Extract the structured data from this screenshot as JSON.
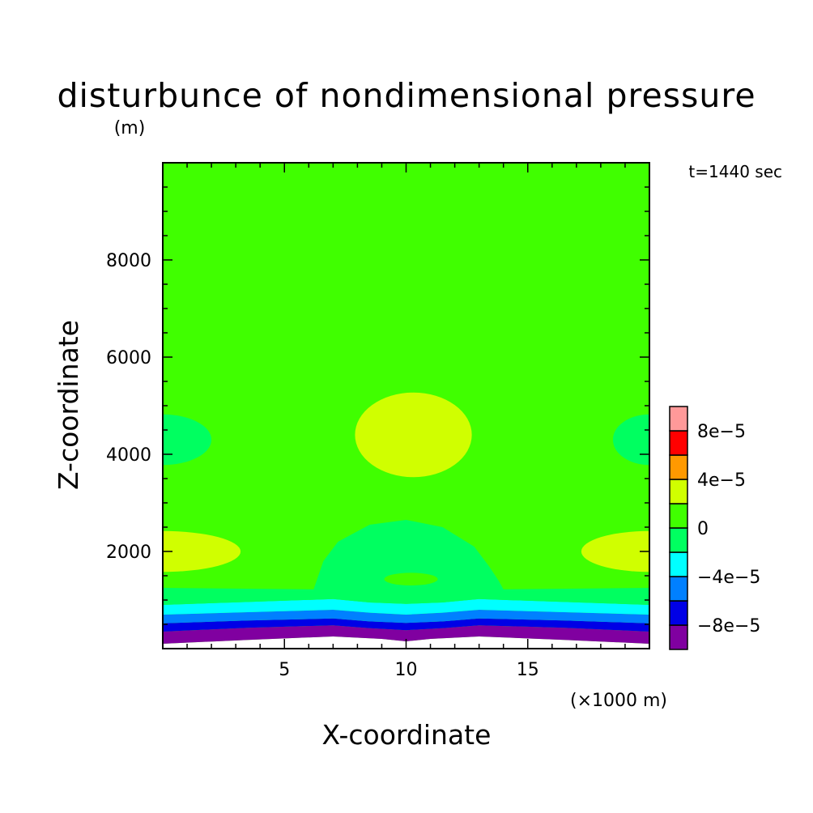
{
  "chart_data": {
    "type": "heatmap",
    "title": "disturbunce of nondimensional pressure",
    "time_label": "t=1440 sec",
    "xlabel": "X-coordinate",
    "xunit": "(×1000 m)",
    "ylabel": "Z-coordinate",
    "yunit": "(m)",
    "xlim": [
      0,
      20
    ],
    "ylim": [
      0,
      10000
    ],
    "x_ticks": [
      5,
      10,
      15
    ],
    "x_tick_labels": [
      "5",
      "10",
      "15"
    ],
    "y_ticks": [
      2000,
      4000,
      6000,
      8000
    ],
    "y_tick_labels": [
      "2000",
      "4000",
      "6000",
      "8000"
    ],
    "background_level_color": "#40ff00",
    "regions": [
      {
        "name": "band-ground",
        "shape": "band",
        "color": "#ffffff",
        "points": [
          [
            0,
            0
          ],
          [
            0,
            100
          ],
          [
            3.5,
            180
          ],
          [
            7,
            250
          ],
          [
            9,
            200
          ],
          [
            10,
            150
          ],
          [
            11,
            200
          ],
          [
            13,
            250
          ],
          [
            16.5,
            180
          ],
          [
            20,
            100
          ],
          [
            20,
            0
          ]
        ]
      },
      {
        "name": "band-minus-10e-5",
        "shape": "band",
        "color": "#8000a0",
        "points": [
          [
            0,
            100
          ],
          [
            3.5,
            180
          ],
          [
            7,
            250
          ],
          [
            9,
            200
          ],
          [
            10,
            150
          ],
          [
            11,
            200
          ],
          [
            13,
            250
          ],
          [
            16.5,
            180
          ],
          [
            20,
            100
          ],
          [
            20,
            350
          ],
          [
            16.5,
            430
          ],
          [
            13,
            480
          ],
          [
            11.5,
            420
          ],
          [
            10,
            380
          ],
          [
            8.5,
            420
          ],
          [
            7,
            480
          ],
          [
            3.5,
            430
          ],
          [
            0,
            350
          ]
        ]
      },
      {
        "name": "band-minus-8e-5",
        "shape": "band",
        "color": "#0000e6",
        "points": [
          [
            0,
            350
          ],
          [
            3.5,
            430
          ],
          [
            7,
            480
          ],
          [
            8.5,
            420
          ],
          [
            10,
            380
          ],
          [
            11.5,
            420
          ],
          [
            13,
            480
          ],
          [
            16.5,
            430
          ],
          [
            20,
            350
          ],
          [
            20,
            520
          ],
          [
            16.5,
            580
          ],
          [
            13,
            620
          ],
          [
            11.5,
            560
          ],
          [
            10,
            530
          ],
          [
            8.5,
            560
          ],
          [
            7,
            620
          ],
          [
            3.5,
            580
          ],
          [
            0,
            520
          ]
        ]
      },
      {
        "name": "band-minus-6e-5",
        "shape": "band",
        "color": "#0080ff",
        "points": [
          [
            0,
            520
          ],
          [
            3.5,
            580
          ],
          [
            7,
            620
          ],
          [
            8.5,
            560
          ],
          [
            10,
            530
          ],
          [
            11.5,
            560
          ],
          [
            13,
            620
          ],
          [
            16.5,
            580
          ],
          [
            20,
            520
          ],
          [
            20,
            700
          ],
          [
            16.5,
            750
          ],
          [
            13,
            800
          ],
          [
            11.5,
            740
          ],
          [
            10,
            700
          ],
          [
            8.5,
            740
          ],
          [
            7,
            800
          ],
          [
            3.5,
            750
          ],
          [
            0,
            700
          ]
        ]
      },
      {
        "name": "band-minus-4e-5",
        "shape": "band",
        "color": "#00ffff",
        "points": [
          [
            0,
            700
          ],
          [
            3.5,
            750
          ],
          [
            7,
            800
          ],
          [
            8.5,
            740
          ],
          [
            10,
            700
          ],
          [
            11.5,
            740
          ],
          [
            13,
            800
          ],
          [
            16.5,
            750
          ],
          [
            20,
            700
          ],
          [
            20,
            900
          ],
          [
            16.5,
            960
          ],
          [
            13,
            1020
          ],
          [
            11.5,
            950
          ],
          [
            10,
            920
          ],
          [
            8.5,
            950
          ],
          [
            7,
            1020
          ],
          [
            3.5,
            960
          ],
          [
            0,
            900
          ]
        ]
      },
      {
        "name": "band-minus-2e-5",
        "shape": "band",
        "color": "#00ff60",
        "points": [
          [
            0,
            900
          ],
          [
            3.5,
            960
          ],
          [
            7,
            1020
          ],
          [
            8.5,
            950
          ],
          [
            10,
            920
          ],
          [
            11.5,
            950
          ],
          [
            13,
            1020
          ],
          [
            16.5,
            960
          ],
          [
            20,
            900
          ],
          [
            20,
            1250
          ],
          [
            14,
            1220
          ],
          [
            13.8,
            1400
          ],
          [
            13.4,
            1700
          ],
          [
            12.8,
            2100
          ],
          [
            11.5,
            2500
          ],
          [
            10,
            2650
          ],
          [
            8.5,
            2550
          ],
          [
            7.2,
            2200
          ],
          [
            6.6,
            1800
          ],
          [
            6.2,
            1220
          ],
          [
            0,
            1250
          ]
        ]
      },
      {
        "name": "blob-center-low",
        "shape": "ellipse",
        "color": "#40ff00",
        "cx": 10.2,
        "cy": 1430,
        "rx": 1.1,
        "ry": 130
      },
      {
        "name": "blob-center-high",
        "shape": "ellipse",
        "color": "#d0ff00",
        "cx": 10.3,
        "cy": 4400,
        "rx": 2.4,
        "ry": 870
      },
      {
        "name": "blob-left-upper",
        "shape": "ellipse",
        "color": "#00ff60",
        "cx": 0,
        "cy": 4300,
        "rx": 2.0,
        "ry": 520
      },
      {
        "name": "blob-right-upper",
        "shape": "ellipse",
        "color": "#00ff60",
        "cx": 20,
        "cy": 4300,
        "rx": 1.5,
        "ry": 520
      },
      {
        "name": "blob-left-lower",
        "shape": "ellipse",
        "color": "#d0ff00",
        "cx": 0,
        "cy": 2000,
        "rx": 3.2,
        "ry": 420
      },
      {
        "name": "blob-right-lower",
        "shape": "ellipse",
        "color": "#d0ff00",
        "cx": 20,
        "cy": 2000,
        "rx": 2.8,
        "ry": 420
      }
    ],
    "colorbar": {
      "levels": [
        -0.0001,
        -8e-05,
        -6e-05,
        -4e-05,
        -2e-05,
        0,
        2e-05,
        4e-05,
        6e-05,
        8e-05,
        0.0001
      ],
      "colors": [
        "#8000a0",
        "#0000e6",
        "#0080ff",
        "#00ffff",
        "#00ff60",
        "#40ff00",
        "#d0ff00",
        "#ff9900",
        "#ff0000",
        "#ff9999"
      ],
      "labels": [
        {
          "value": -8e-05,
          "text": "−8e−5"
        },
        {
          "value": -4e-05,
          "text": "−4e−5"
        },
        {
          "value": 0,
          "text": "0"
        },
        {
          "value": 4e-05,
          "text": "4e−5"
        },
        {
          "value": 8e-05,
          "text": "8e−5"
        }
      ]
    }
  }
}
